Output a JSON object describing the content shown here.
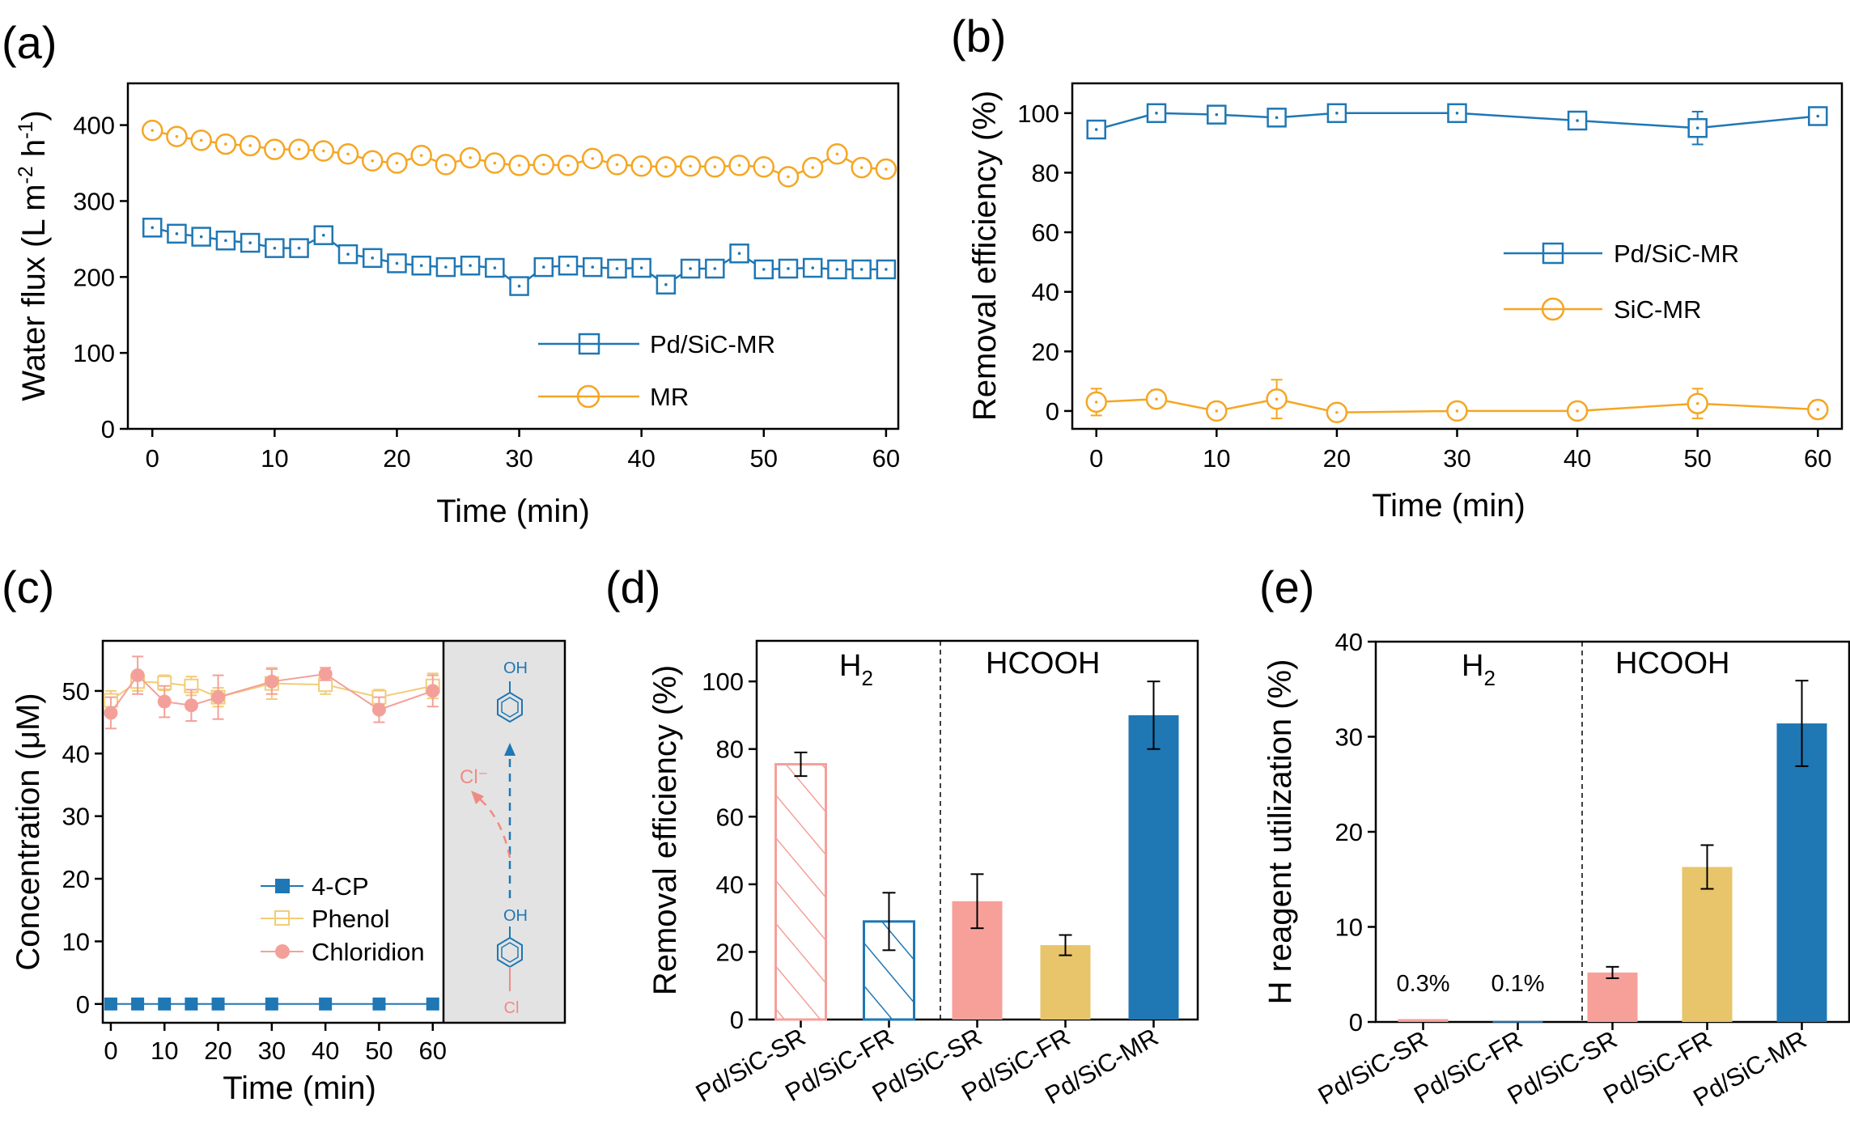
{
  "colors": {
    "blue": "#1f77b4",
    "orange": "#f5a623",
    "pink": "#f4a09a",
    "phenol_yellow": "#f3cc76",
    "pink_bar": "#f7a09a",
    "yellow_bar": "#e8c56a",
    "blue_bar": "#1f77b4",
    "gray_box": "#e3e3e3",
    "chloride_arrow": "#f08a84"
  },
  "chart_data": [
    {
      "panel": "(a)",
      "type": "line",
      "xlabel": "Time (min)",
      "ylabel": "Water flux (L m-2 h-1)",
      "ylabel_parts": {
        "main": "Water flux (L m",
        "exp1": "-2",
        "mid": " h",
        "exp2": "-1",
        "end": ")"
      },
      "xlim": [
        -2,
        61
      ],
      "ylim": [
        0,
        455
      ],
      "xticks": [
        0,
        10,
        20,
        30,
        40,
        50,
        60
      ],
      "yticks": [
        0,
        100,
        200,
        300,
        400
      ],
      "legend_position": "bottom-right",
      "series": [
        {
          "name": "Pd/SiC-MR",
          "marker": "square",
          "color": "#1f77b4",
          "x": [
            0,
            2,
            4,
            6,
            8,
            10,
            12,
            14,
            16,
            18,
            20,
            22,
            24,
            26,
            28,
            30,
            32,
            34,
            36,
            38,
            40,
            42,
            44,
            46,
            48,
            50,
            52,
            54,
            56,
            58,
            60
          ],
          "y": [
            265,
            257,
            253,
            248,
            245,
            238,
            238,
            255,
            230,
            225,
            218,
            215,
            213,
            215,
            212,
            188,
            213,
            215,
            213,
            211,
            212,
            190,
            211,
            211,
            231,
            210,
            211,
            212,
            210,
            210,
            210
          ]
        },
        {
          "name": "MR",
          "marker": "circle",
          "color": "#f5a623",
          "x": [
            0,
            2,
            4,
            6,
            8,
            10,
            12,
            14,
            16,
            18,
            20,
            22,
            24,
            26,
            28,
            30,
            32,
            34,
            36,
            38,
            40,
            42,
            44,
            46,
            48,
            50,
            52,
            54,
            56,
            58,
            60
          ],
          "y": [
            393,
            385,
            380,
            375,
            373,
            368,
            368,
            366,
            362,
            353,
            350,
            360,
            348,
            357,
            350,
            347,
            348,
            347,
            356,
            348,
            346,
            345,
            346,
            345,
            347,
            345,
            332,
            344,
            362,
            344,
            342
          ]
        }
      ]
    },
    {
      "panel": "(b)",
      "type": "line",
      "xlabel": "Time (min)",
      "ylabel": "Removal efficiency (%)",
      "xlim": [
        -2,
        62
      ],
      "ylim": [
        -6,
        110
      ],
      "xticks": [
        0,
        10,
        20,
        30,
        40,
        50,
        60
      ],
      "yticks": [
        0,
        20,
        40,
        60,
        80,
        100
      ],
      "legend_position": "center-right",
      "series": [
        {
          "name": "Pd/SiC-MR",
          "marker": "square",
          "color": "#1f77b4",
          "x": [
            0,
            5,
            10,
            15,
            20,
            30,
            40,
            50,
            60
          ],
          "y": [
            94.5,
            100,
            99.5,
            98.5,
            100,
            100,
            97.5,
            95,
            99
          ],
          "err": [
            2.5,
            2,
            2,
            3,
            1.5,
            1,
            1.5,
            5.5,
            3
          ]
        },
        {
          "name": "SiC-MR",
          "marker": "circle",
          "color": "#f5a623",
          "x": [
            0,
            5,
            10,
            15,
            20,
            30,
            40,
            50,
            60
          ],
          "y": [
            3,
            4,
            0,
            4,
            -0.5,
            0,
            0,
            2.5,
            0.5
          ],
          "err": [
            4.5,
            3,
            2,
            6.5,
            2.5,
            2.5,
            2.5,
            5,
            3
          ]
        }
      ]
    },
    {
      "panel": "(c)",
      "type": "line",
      "xlabel": "Time (min)",
      "ylabel": "Concentration (μM)",
      "xlim": [
        -1.5,
        62
      ],
      "ylim": [
        -3,
        58
      ],
      "xticks": [
        0,
        10,
        20,
        30,
        40,
        50,
        60
      ],
      "yticks": [
        0,
        10,
        20,
        30,
        40,
        50
      ],
      "legend_position": "bottom-right",
      "series": [
        {
          "name": "4-CP",
          "marker": "filled-square",
          "color": "#1f77b4",
          "x": [
            0,
            5,
            10,
            15,
            20,
            30,
            40,
            50,
            60
          ],
          "y": [
            0,
            0,
            0,
            0,
            0,
            0,
            0,
            0,
            0
          ],
          "err": [
            0,
            0,
            0,
            0,
            0,
            0,
            0,
            0,
            0
          ]
        },
        {
          "name": "Phenol",
          "marker": "open-square",
          "color": "#f3cc76",
          "x": [
            0,
            5,
            10,
            15,
            20,
            30,
            40,
            50,
            60
          ],
          "y": [
            48.5,
            51.5,
            51.3,
            50.8,
            49,
            51.2,
            51,
            49,
            50.8
          ],
          "err": [
            1.5,
            1.5,
            1.2,
            1.5,
            1.5,
            2.5,
            1.5,
            1.2,
            2
          ]
        },
        {
          "name": "Chloridion",
          "marker": "filled-circle",
          "color": "#f4a09a",
          "x": [
            0,
            5,
            10,
            15,
            20,
            30,
            40,
            50,
            60
          ],
          "y": [
            46.5,
            52.5,
            48.3,
            47.7,
            49,
            51.5,
            52.7,
            47,
            50
          ],
          "err": [
            2.5,
            3,
            2.5,
            2.5,
            3.5,
            2,
            1,
            2,
            2.5
          ]
        }
      ],
      "scheme": {
        "product_label": "OH",
        "reactant_label_top": "OH",
        "reactant_label_bottom": "Cl",
        "released_label": "Cl⁻"
      }
    },
    {
      "panel": "(d)",
      "type": "bar",
      "ylabel": "Removal efficiency (%)",
      "ylim": [
        0,
        112
      ],
      "yticks": [
        0,
        20,
        40,
        60,
        80,
        100
      ],
      "categories": [
        "Pd/SiC-SR",
        "Pd/SiC-FR",
        "Pd/SiC-SR",
        "Pd/SiC-FR",
        "Pd/SiC-MR"
      ],
      "values": [
        75.5,
        29,
        35,
        22,
        90
      ],
      "err": [
        3.5,
        8.5,
        8,
        3,
        10
      ],
      "fills": [
        "hatch-pink",
        "hatch-blue",
        "#f7a09a",
        "#e8c56a",
        "#1f77b4"
      ],
      "group_labels": {
        "left_main": "H",
        "left_sub": "2",
        "right": "HCOOH"
      }
    },
    {
      "panel": "(e)",
      "type": "bar",
      "ylabel": "H reagent utilization (%)",
      "ylim": [
        0,
        40
      ],
      "yticks": [
        0,
        10,
        20,
        30,
        40
      ],
      "categories": [
        "Pd/SiC-SR",
        "Pd/SiC-FR",
        "Pd/SiC-SR",
        "Pd/SiC-FR",
        "Pd/SiC-MR"
      ],
      "values": [
        0.3,
        0.1,
        5.2,
        16.3,
        31.4
      ],
      "err": [
        0,
        0,
        0.6,
        2.3,
        4.5
      ],
      "fills": [
        "#f7a09a",
        "#1f77b4",
        "#f7a09a",
        "#e8c56a",
        "#1f77b4"
      ],
      "bar_labels": [
        "0.3%",
        "0.1%",
        "",
        "",
        ""
      ],
      "group_labels": {
        "left_main": "H",
        "left_sub": "2",
        "right": "HCOOH"
      }
    }
  ]
}
